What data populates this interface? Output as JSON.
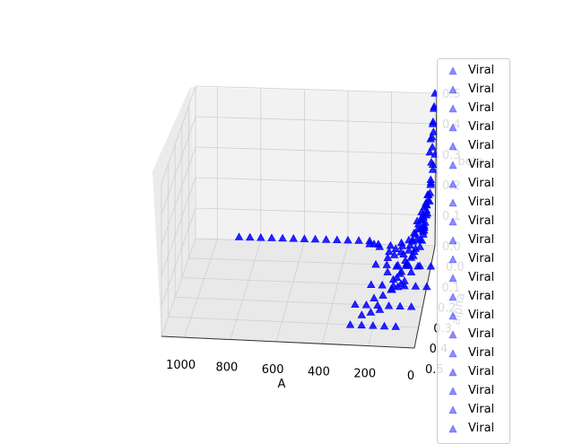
{
  "chart_data": {
    "type": "scatter3d",
    "axes": {
      "x": {
        "label": "A",
        "ticks": [
          "1000",
          "800",
          "600",
          "400",
          "200",
          "0"
        ],
        "range": [
          0,
          1100
        ]
      },
      "y": {
        "label": "alpha",
        "ticks": [
          "0.0",
          "0.1",
          "0.2",
          "0.3",
          "0.4",
          "0.5"
        ],
        "range": [
          0,
          0.5
        ]
      },
      "z": {
        "label": "beta",
        "ticks": [
          "0.0",
          "0.1",
          "0.2",
          "0.3",
          "0.4",
          "0.5"
        ],
        "range": [
          0,
          0.5
        ]
      }
    },
    "grid": true,
    "marker": "triangle",
    "marker_color": "#0000ff",
    "series": [
      {
        "name": "Viral",
        "x": [
          900,
          850,
          800,
          750,
          700,
          650,
          600,
          550,
          500,
          450,
          400,
          350,
          300
        ],
        "y": [
          0,
          0,
          0,
          0,
          0,
          0,
          0,
          0,
          0,
          0,
          0,
          0,
          0
        ],
        "z": [
          0.01,
          0.01,
          0.01,
          0.01,
          0.01,
          0.01,
          0.01,
          0.01,
          0.01,
          0.01,
          0.01,
          0.01,
          0.01
        ]
      },
      {
        "name": "Viral",
        "x": [
          250,
          200,
          150,
          100,
          50,
          0,
          250,
          200,
          150,
          100,
          50,
          0
        ],
        "y": [
          0.1,
          0.1,
          0.1,
          0.1,
          0.1,
          0.1,
          0.2,
          0.2,
          0.2,
          0.2,
          0.2,
          0.2
        ],
        "z": [
          0,
          0,
          0,
          0,
          0,
          0,
          0,
          0,
          0,
          0,
          0,
          0
        ]
      },
      {
        "name": "Viral",
        "x": [
          300,
          250,
          200,
          150,
          100,
          50,
          300,
          250,
          200,
          150,
          100
        ],
        "y": [
          0.3,
          0.3,
          0.3,
          0.3,
          0.3,
          0.3,
          0.4,
          0.4,
          0.4,
          0.4,
          0.4
        ],
        "z": [
          0,
          0,
          0,
          0,
          0,
          0,
          0,
          0,
          0,
          0,
          0
        ]
      },
      {
        "name": "Viral",
        "x": [
          50,
          40,
          30,
          20,
          10,
          0,
          50,
          40,
          30,
          20,
          10,
          0
        ],
        "y": [
          0,
          0,
          0,
          0,
          0,
          0,
          0.05,
          0.05,
          0.05,
          0.05,
          0.05,
          0.05
        ],
        "z": [
          0.05,
          0.1,
          0.15,
          0.2,
          0.25,
          0.3,
          0.05,
          0.1,
          0.15,
          0.2,
          0.25,
          0.3
        ]
      },
      {
        "name": "Viral",
        "x": [
          20,
          10,
          5,
          0,
          20,
          10,
          5,
          0
        ],
        "y": [
          0,
          0,
          0,
          0,
          0.02,
          0.02,
          0.02,
          0.02
        ],
        "z": [
          0.35,
          0.4,
          0.45,
          0.5,
          0.32,
          0.37,
          0.42,
          0.47
        ]
      },
      {
        "name": "Viral",
        "x": [
          100,
          80,
          60,
          40,
          20,
          100,
          80,
          60,
          40,
          20
        ],
        "y": [
          0.1,
          0.1,
          0.1,
          0.1,
          0.1,
          0.15,
          0.15,
          0.15,
          0.15,
          0.15
        ],
        "z": [
          0.05,
          0.08,
          0.12,
          0.15,
          0.2,
          0.04,
          0.06,
          0.09,
          0.12,
          0.16
        ]
      },
      {
        "name": "Viral",
        "x": [
          150,
          120,
          90,
          60,
          30,
          150,
          120,
          90,
          60,
          30
        ],
        "y": [
          0.2,
          0.2,
          0.2,
          0.2,
          0.2,
          0.25,
          0.25,
          0.25,
          0.25,
          0.25
        ],
        "z": [
          0.02,
          0.04,
          0.07,
          0.1,
          0.13,
          0.02,
          0.03,
          0.05,
          0.08,
          0.1
        ]
      },
      {
        "name": "Viral",
        "x": [
          200,
          170,
          140,
          110,
          80,
          200,
          170,
          140
        ],
        "y": [
          0.05,
          0.05,
          0.05,
          0.05,
          0.05,
          0.08,
          0.08,
          0.08
        ],
        "z": [
          0.01,
          0.02,
          0.03,
          0.05,
          0.07,
          0.01,
          0.02,
          0.03
        ]
      },
      {
        "name": "Viral",
        "x": [
          60,
          45,
          30,
          15,
          60,
          45,
          30,
          15
        ],
        "y": [
          0.02,
          0.02,
          0.02,
          0.02,
          0.04,
          0.04,
          0.04,
          0.04
        ],
        "z": [
          0.1,
          0.14,
          0.18,
          0.22,
          0.08,
          0.12,
          0.16,
          0.2
        ]
      },
      {
        "name": "Viral",
        "x": [
          250,
          200,
          150,
          100,
          50
        ],
        "y": [
          0.02,
          0.02,
          0.02,
          0.02,
          0.02
        ],
        "z": [
          0.005,
          0.01,
          0.02,
          0.03,
          0.05
        ]
      },
      {
        "name": "Viral",
        "x": [
          300,
          280,
          260
        ],
        "y": [
          0,
          0,
          0
        ],
        "z": [
          0,
          0,
          0
        ]
      },
      {
        "name": "Viral",
        "x": [
          40,
          30,
          20,
          10
        ],
        "y": [
          0.08,
          0.08,
          0.08,
          0.08
        ],
        "z": [
          0.1,
          0.13,
          0.16,
          0.2
        ]
      },
      {
        "name": "Viral",
        "x": [
          120,
          90,
          60,
          30
        ],
        "y": [
          0.12,
          0.12,
          0.12,
          0.12
        ],
        "z": [
          0.05,
          0.08,
          0.1,
          0.14
        ]
      },
      {
        "name": "Viral",
        "x": [
          180,
          140,
          100,
          60
        ],
        "y": [
          0.18,
          0.18,
          0.18,
          0.18
        ],
        "z": [
          0.03,
          0.05,
          0.07,
          0.1
        ]
      },
      {
        "name": "Viral",
        "x": [
          220,
          180,
          140,
          100
        ],
        "y": [
          0.28,
          0.28,
          0.28,
          0.28
        ],
        "z": [
          0.01,
          0.02,
          0.04,
          0.06
        ]
      },
      {
        "name": "Viral",
        "x": [
          260,
          220,
          180
        ],
        "y": [
          0.35,
          0.35,
          0.35
        ],
        "z": [
          0,
          0.01,
          0.02
        ]
      },
      {
        "name": "Viral",
        "x": [
          15,
          10,
          5
        ],
        "y": [
          0.01,
          0.01,
          0.01
        ],
        "z": [
          0.28,
          0.33,
          0.38
        ]
      },
      {
        "name": "Viral",
        "x": [
          70,
          50,
          30
        ],
        "y": [
          0.06,
          0.06,
          0.06
        ],
        "z": [
          0.12,
          0.15,
          0.18
        ]
      },
      {
        "name": "Viral",
        "x": [
          90,
          70,
          50
        ],
        "y": [
          0.03,
          0.03,
          0.03
        ],
        "z": [
          0.06,
          0.09,
          0.12
        ]
      },
      {
        "name": "Viral",
        "x": [
          130,
          110,
          90
        ],
        "y": [
          0.22,
          0.22,
          0.22
        ],
        "z": [
          0.04,
          0.06,
          0.08
        ]
      }
    ]
  }
}
